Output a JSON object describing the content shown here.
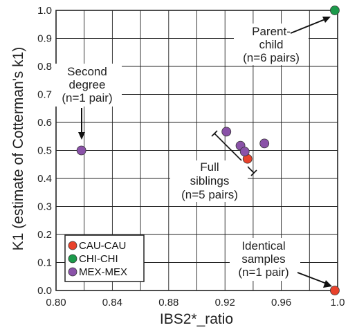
{
  "chart_data": {
    "type": "scatter",
    "title": "",
    "xlabel": "IBS2*_ratio",
    "ylabel": "K1 (estimate of Cotterman's k1)",
    "xlim": [
      0.8,
      1.0
    ],
    "ylim": [
      0.0,
      1.0
    ],
    "grid": true,
    "x_ticks": [
      {
        "value": 0.8,
        "label": "0.80"
      },
      {
        "value": 0.84,
        "label": "0.84"
      },
      {
        "value": 0.88,
        "label": "0.88"
      },
      {
        "value": 0.92,
        "label": "0.92"
      },
      {
        "value": 0.96,
        "label": "0.96"
      },
      {
        "value": 1.0,
        "label": "1.0"
      }
    ],
    "y_ticks": [
      {
        "value": 0.0,
        "label": "0.0"
      },
      {
        "value": 0.1,
        "label": "0.1"
      },
      {
        "value": 0.2,
        "label": "0.2"
      },
      {
        "value": 0.3,
        "label": "0.3"
      },
      {
        "value": 0.4,
        "label": "0.4"
      },
      {
        "value": 0.5,
        "label": "0.5"
      },
      {
        "value": 0.6,
        "label": "0.6"
      },
      {
        "value": 0.7,
        "label": "0.7"
      },
      {
        "value": 0.8,
        "label": "0.8"
      },
      {
        "value": 0.9,
        "label": "0.9"
      },
      {
        "value": 1.0,
        "label": "1.0"
      }
    ],
    "legend_position": "bottom-left",
    "series": [
      {
        "name": "CAU-CAU",
        "color": "#e8422b",
        "points": [
          {
            "x": 0.936,
            "y": 0.47
          },
          {
            "x": 0.998,
            "y": 0.0
          }
        ]
      },
      {
        "name": "CHI-CHI",
        "color": "#1b9a4a",
        "points": [
          {
            "x": 0.998,
            "y": 1.0
          }
        ]
      },
      {
        "name": "MEX-MEX",
        "color": "#8a52a8",
        "points": [
          {
            "x": 0.818,
            "y": 0.5
          },
          {
            "x": 0.921,
            "y": 0.567
          },
          {
            "x": 0.931,
            "y": 0.517
          },
          {
            "x": 0.934,
            "y": 0.496
          },
          {
            "x": 0.948,
            "y": 0.525
          }
        ]
      }
    ],
    "annotations": [
      {
        "lines": [
          "Parent-",
          "child",
          "(n=6 pairs)"
        ]
      },
      {
        "lines": [
          "Second",
          "degree",
          "(n=1 pair)"
        ]
      },
      {
        "lines": [
          "Full",
          "siblings",
          "(n=5 pairs)"
        ]
      },
      {
        "lines": [
          "Identical",
          "samples",
          "(n=1 pair)"
        ]
      }
    ]
  }
}
